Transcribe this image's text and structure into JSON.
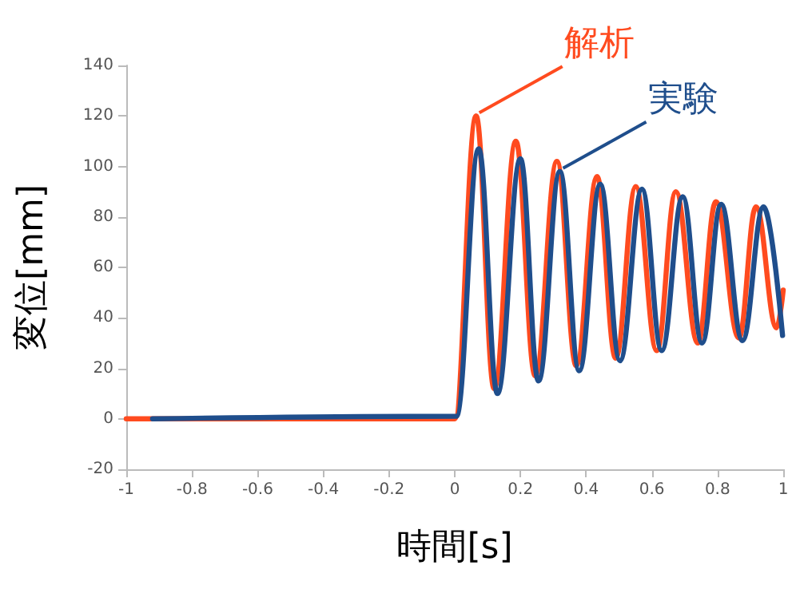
{
  "chart_data": {
    "type": "line",
    "xlabel": "時間[s]",
    "ylabel": "変位[mm]",
    "xlim": [
      -1,
      1
    ],
    "xticks": [
      -1,
      -0.8,
      -0.6,
      -0.4,
      -0.2,
      0,
      0.2,
      0.4,
      0.6,
      0.8,
      1
    ],
    "ylim": [
      -20,
      140
    ],
    "yticks": [
      -20,
      0,
      20,
      40,
      60,
      80,
      100,
      120,
      140
    ],
    "grid": false,
    "marker": "none",
    "line_style": "solid",
    "annotations": [
      {
        "text": "解析",
        "x": 0.065,
        "y": 120
      },
      {
        "text": "実験",
        "x": 0.32,
        "y": 98
      }
    ],
    "series": [
      {
        "color": "#ff4b1f",
        "x": [
          -1,
          0,
          0.065,
          0.12,
          0.186,
          0.245,
          0.311,
          0.37,
          0.433,
          0.49,
          0.551,
          0.615,
          0.673,
          0.74,
          0.795,
          0.865,
          0.917,
          0.98,
          1.0
        ],
        "values": [
          0,
          0,
          120,
          12,
          110,
          17,
          102,
          21,
          96,
          24,
          92,
          27,
          90,
          30,
          86,
          32,
          84,
          36,
          51
        ]
      },
      {
        "color": "#1f4e8c",
        "x": [
          -0.92,
          0.005,
          0.073,
          0.13,
          0.2,
          0.255,
          0.32,
          0.379,
          0.443,
          0.503,
          0.57,
          0.63,
          0.694,
          0.753,
          0.811,
          0.876,
          0.94,
          0.998
        ],
        "values": [
          0,
          1,
          107,
          10,
          103,
          15,
          98,
          19,
          93,
          23,
          91,
          27,
          88,
          30,
          85,
          31,
          84,
          33
        ]
      }
    ]
  }
}
